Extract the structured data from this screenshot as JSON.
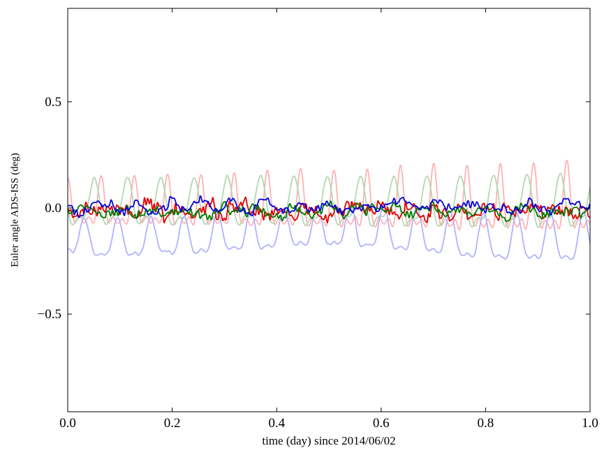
{
  "figure": {
    "background": "#ffffff",
    "xlabel": "time (day) since 2014/06/02",
    "ylabel": "Euler angle ADS-ISS (deg)"
  },
  "chart_data": {
    "type": "line",
    "title": "",
    "xlabel": "time (day) since 2014/06/02",
    "ylabel": "Euler angle ADS-ISS (deg)",
    "xlim": [
      0.0,
      1.0
    ],
    "ylim": [
      -0.96,
      0.94
    ],
    "grid": false,
    "legend": null,
    "xticks": {
      "values": [
        0.0,
        0.2,
        0.4,
        0.6,
        0.8,
        1.0
      ],
      "labels": [
        "0.0",
        "0.2",
        "0.4",
        "0.6",
        "0.8",
        "1.0"
      ]
    },
    "yticks": {
      "values": [
        -0.5,
        0.0,
        0.5
      ],
      "labels": [
        "−0.5",
        "0.0",
        "0.5"
      ]
    },
    "oscillation_cycles_per_day": 15.7,
    "series": [
      {
        "name": "light-red-raw",
        "style": "pale",
        "color": "#ffb2b2",
        "line_width": 1.8,
        "observed_range": [
          -0.15,
          0.31
        ],
        "observed_mean": -0.02,
        "generator": {
          "samples": 1400,
          "offset": -0.015,
          "env": [
            0.85,
            0.45
          ],
          "harmonics": [
            [
              0.085,
              15.7,
              0.25
            ],
            [
              0.062,
              31.4,
              0.25
            ],
            [
              0.038,
              47.1,
              0.25
            ]
          ],
          "noise": {
            "seed": 11,
            "amp": 0.012,
            "knots": 60
          }
        }
      },
      {
        "name": "light-green-raw",
        "style": "pale",
        "color": "#b2d8b2",
        "line_width": 1.8,
        "observed_range": [
          -0.13,
          0.16
        ],
        "observed_mean": 0.01,
        "generator": {
          "samples": 1400,
          "offset": 0.01,
          "env": [
            1.0,
            0.1
          ],
          "harmonics": [
            [
              0.095,
              15.7,
              0.47
            ],
            [
              0.042,
              31.4,
              0.62
            ]
          ],
          "noise": {
            "seed": 22,
            "amp": 0.01,
            "knots": 50
          }
        }
      },
      {
        "name": "light-blue-raw",
        "style": "pale",
        "color": "#b2b2ff",
        "line_width": 1.8,
        "observed_range": [
          -0.31,
          -0.04
        ],
        "observed_mean": -0.17,
        "generator": {
          "samples": 1400,
          "offset": -0.14,
          "env": [
            0.9,
            0.35
          ],
          "harmonics": [
            [
              0.082,
              15.7,
              0.75
            ],
            [
              0.035,
              31.4,
              0.25
            ],
            [
              0.025,
              1.3,
              0.6
            ]
          ],
          "noise": {
            "seed": 33,
            "amp": 0.012,
            "knots": 50
          }
        }
      },
      {
        "name": "red-filtered",
        "style": "solid",
        "color": "#e00000",
        "line_width": 1.8,
        "observed_range": [
          -0.12,
          0.08
        ],
        "observed_mean": -0.01,
        "generator": {
          "samples": 1400,
          "offset": -0.012,
          "env": [
            1.0,
            0.0
          ],
          "harmonics": [
            [
              0.012,
              15.7,
              0.0
            ]
          ],
          "noise": {
            "seed": 44,
            "amp": 0.055,
            "knots": 80
          }
        }
      },
      {
        "name": "green-filtered",
        "style": "solid",
        "color": "#007a00",
        "line_width": 1.8,
        "observed_range": [
          -0.07,
          0.06
        ],
        "observed_mean": -0.01,
        "generator": {
          "samples": 1400,
          "offset": -0.012,
          "env": [
            1.0,
            0.0
          ],
          "harmonics": [
            [
              0.01,
              15.7,
              0.5
            ]
          ],
          "noise": {
            "seed": 55,
            "amp": 0.04,
            "knots": 70
          }
        }
      },
      {
        "name": "blue-filtered",
        "style": "solid",
        "color": "#0000dd",
        "line_width": 1.8,
        "observed_range": [
          -0.06,
          0.08
        ],
        "observed_mean": 0.01,
        "generator": {
          "samples": 1400,
          "offset": 0.008,
          "env": [
            1.0,
            0.0
          ],
          "harmonics": [
            [
              0.012,
              15.7,
              0.3
            ]
          ],
          "noise": {
            "seed": 66,
            "amp": 0.04,
            "knots": 60
          }
        }
      }
    ]
  }
}
